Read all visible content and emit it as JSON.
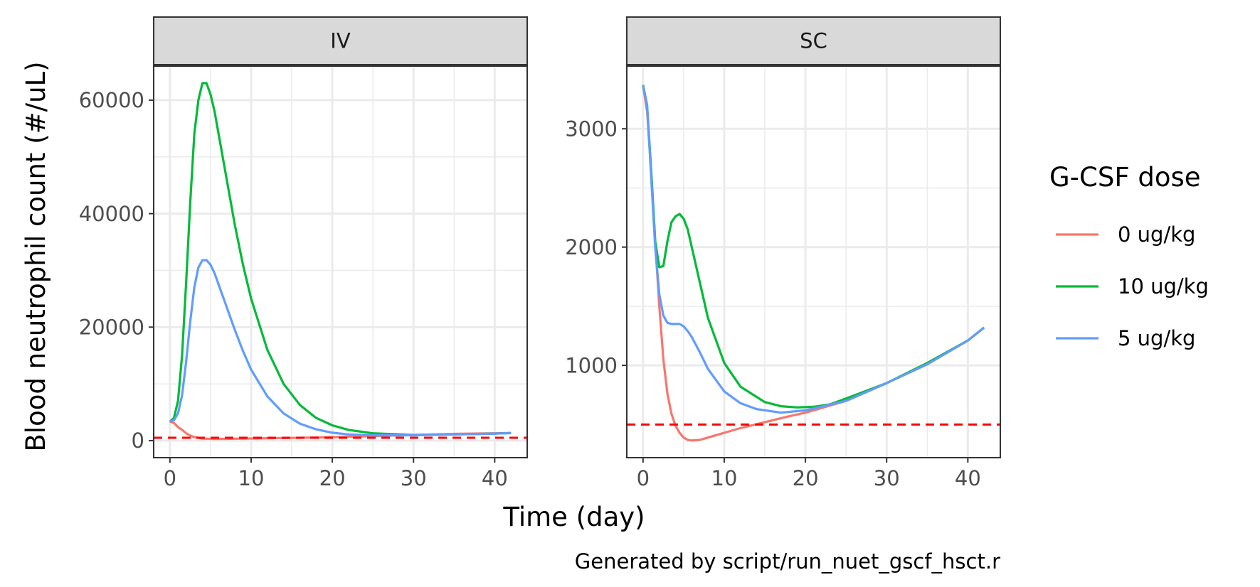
{
  "chart_data": {
    "type": "line",
    "caption": "Generated by script/run_nuet_gscf_hsct.r",
    "xlabel": "Time (day)",
    "ylabel": "Blood neutrophil count (#/uL)",
    "legend": {
      "title": "G-CSF dose",
      "placement": "right",
      "entries": [
        {
          "label": "0 ug/kg",
          "color": "#F8766D"
        },
        {
          "label": "10 ug/kg",
          "color": "#00BA38"
        },
        {
          "label": "5 ug/kg",
          "color": "#619CFF"
        }
      ]
    },
    "reference_line": {
      "y": 500,
      "color": "#FF0000",
      "style": "dashed"
    },
    "grid": true,
    "panels": [
      {
        "strip": "IV",
        "xlim": [
          -2,
          44
        ],
        "ylim": [
          -3000,
          66000
        ],
        "x_ticks": [
          0,
          10,
          20,
          30,
          40
        ],
        "x_tick_labels": [
          "0",
          "10",
          "20",
          "30",
          "40"
        ],
        "y_ticks": [
          0,
          20000,
          40000,
          60000
        ],
        "y_tick_labels": [
          "0",
          "20000",
          "40000",
          "60000"
        ],
        "series": [
          {
            "name": "0 ug/kg",
            "color": "#F8766D",
            "x": [
              0,
              0.5,
              1,
              1.5,
              2,
              2.5,
              3,
              4,
              5,
              6,
              7,
              8,
              10,
              12,
              15,
              18,
              20,
              25,
              30,
              35,
              40,
              42
            ],
            "y": [
              3350,
              3100,
              2400,
              1900,
              1300,
              900,
              620,
              380,
              320,
              300,
              320,
              340,
              380,
              430,
              480,
              560,
              620,
              800,
              1000,
              1200,
              1300,
              1340
            ]
          },
          {
            "name": "10 ug/kg",
            "color": "#00BA38",
            "x": [
              0,
              0.5,
              1,
              1.5,
              2,
              2.5,
              3,
              3.5,
              4,
              4.5,
              5,
              5.5,
              6,
              7,
              8,
              9,
              10,
              12,
              14,
              16,
              18,
              20,
              22,
              25,
              30,
              35,
              40,
              42
            ],
            "y": [
              3350,
              4000,
              7000,
              15000,
              28000,
              42000,
              54000,
              60000,
              63000,
              63000,
              61000,
              58000,
              54000,
              46000,
              38000,
              31000,
              25000,
              16000,
              10000,
              6300,
              4000,
              2700,
              1900,
              1300,
              1000,
              1100,
              1250,
              1330
            ]
          },
          {
            "name": "5 ug/kg",
            "color": "#619CFF",
            "x": [
              0,
              0.5,
              1,
              1.5,
              2,
              2.5,
              3,
              3.5,
              4,
              4.5,
              5,
              5.5,
              6,
              7,
              8,
              9,
              10,
              12,
              14,
              16,
              18,
              20,
              22,
              25,
              30,
              35,
              40,
              42
            ],
            "y": [
              3350,
              3600,
              4800,
              8000,
              14000,
              21000,
              27000,
              30500,
              31800,
              31800,
              31000,
              29500,
              27500,
              23500,
              19500,
              15800,
              12500,
              7800,
              4800,
              3000,
              2000,
              1400,
              1100,
              950,
              950,
              1100,
              1250,
              1330
            ]
          }
        ]
      },
      {
        "strip": "SC",
        "xlim": [
          -2,
          44
        ],
        "ylim": [
          220,
          3530
        ],
        "x_ticks": [
          0,
          10,
          20,
          30,
          40
        ],
        "x_tick_labels": [
          "0",
          "10",
          "20",
          "30",
          "40"
        ],
        "y_ticks": [
          1000,
          2000,
          3000
        ],
        "y_tick_labels": [
          "1000",
          "2000",
          "3000"
        ],
        "series": [
          {
            "name": "0 ug/kg",
            "color": "#F8766D",
            "x": [
              0,
              0.5,
              1,
              1.5,
              2,
              2.5,
              3,
              3.5,
              4,
              4.5,
              5,
              5.5,
              6,
              7,
              8,
              10,
              12,
              15,
              18,
              20,
              25,
              30,
              35,
              40,
              42
            ],
            "y": [
              3370,
              3150,
              2650,
              2050,
              1500,
              1050,
              760,
              590,
              490,
              430,
              390,
              370,
              365,
              370,
              390,
              430,
              470,
              520,
              570,
              600,
              700,
              850,
              1010,
              1210,
              1320
            ]
          },
          {
            "name": "10 ug/kg",
            "color": "#00BA38",
            "x": [
              0,
              0.5,
              1,
              1.5,
              2,
              2.5,
              3,
              3.5,
              4,
              4.5,
              5,
              5.5,
              6,
              7,
              8,
              10,
              12,
              15,
              17,
              19,
              21,
              23,
              25,
              30,
              35,
              40,
              42
            ],
            "y": [
              3370,
              3200,
              2650,
              2050,
              1830,
              1840,
              2050,
              2210,
              2260,
              2280,
              2240,
              2150,
              2000,
              1700,
              1400,
              1020,
              820,
              690,
              655,
              645,
              650,
              670,
              720,
              850,
              1020,
              1210,
              1320
            ]
          },
          {
            "name": "5 ug/kg",
            "color": "#619CFF",
            "x": [
              0,
              0.5,
              1,
              1.5,
              2,
              2.5,
              3,
              3.5,
              4,
              4.5,
              5,
              5.5,
              6,
              7,
              8,
              10,
              12,
              14,
              17,
              20,
              25,
              30,
              35,
              40,
              42
            ],
            "y": [
              3370,
              3200,
              2600,
              2000,
              1600,
              1420,
              1360,
              1350,
              1350,
              1350,
              1330,
              1290,
              1240,
              1110,
              970,
              780,
              680,
              630,
              600,
              620,
              700,
              850,
              1010,
              1210,
              1320
            ]
          }
        ]
      }
    ]
  }
}
